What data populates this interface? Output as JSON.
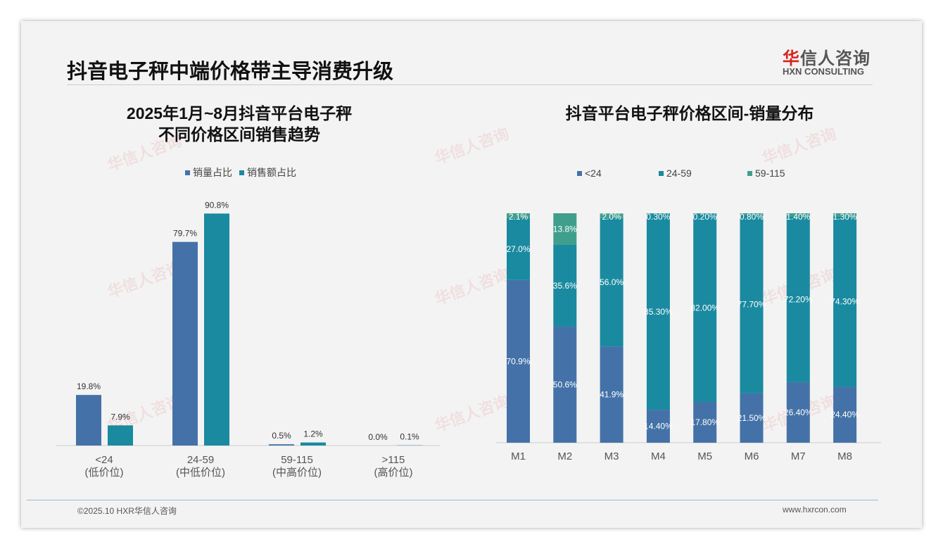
{
  "header": {
    "title": "抖音电子秤中端价格带主导消费升级",
    "logo_cn": "华信人咨询",
    "logo_cn_red": "华",
    "logo_en": "HXN CONSULTING"
  },
  "footer": {
    "copyright": "©2025.10 HXR华信人咨询",
    "website": "www.hxrcon.com"
  },
  "colors": {
    "blue": "#4472a8",
    "teal": "#1a8aa0",
    "green": "#3f9f8c"
  },
  "chart_data": [
    {
      "type": "bar",
      "title_line1": "2025年1月~8月抖音平台电子秤",
      "title_line2": "不同价格区间销售趋势",
      "categories": [
        "<24",
        "24-59",
        "59-115",
        ">115"
      ],
      "sublabels": [
        "(低价位)",
        "(中低价位)",
        "(中高价位)",
        "(高价位)"
      ],
      "series": [
        {
          "name": "销量占比",
          "values": [
            19.8,
            79.7,
            0.5,
            0.0
          ],
          "labels": [
            "19.8%",
            "79.7%",
            "0.5%",
            "0.0%"
          ]
        },
        {
          "name": "销售额占比",
          "values": [
            7.9,
            90.8,
            1.2,
            0.1
          ],
          "labels": [
            "7.9%",
            "90.8%",
            "1.2%",
            "0.1%"
          ]
        }
      ],
      "ylim": [
        0,
        100
      ],
      "legend": "top"
    },
    {
      "type": "bar",
      "stacked": true,
      "title": "抖音平台电子秤价格区间-销量分布",
      "categories": [
        "M1",
        "M2",
        "M3",
        "M4",
        "M5",
        "M6",
        "M7",
        "M8"
      ],
      "series": [
        {
          "name": "<24",
          "values": [
            70.9,
            50.6,
            41.9,
            14.4,
            17.8,
            21.5,
            26.4,
            24.4
          ],
          "labels": [
            "70.9%",
            "50.6%",
            "41.9%",
            "14.40%",
            "17.80%",
            "21.50%",
            "26.40%",
            "24.40%"
          ]
        },
        {
          "name": "24-59",
          "values": [
            27.0,
            35.6,
            56.0,
            85.3,
            82.0,
            77.7,
            72.2,
            74.3
          ],
          "labels": [
            "27.0%",
            "35.6%",
            "56.0%",
            "85.30%",
            "82.00%",
            "77.70%",
            "72.20%",
            "74.30%"
          ]
        },
        {
          "name": "59-115",
          "values": [
            2.1,
            13.8,
            2.0,
            0.3,
            0.2,
            0.8,
            1.4,
            1.3
          ],
          "labels": [
            "2.1%",
            "13.8%",
            "2.0%",
            "0.30%",
            "0.20%",
            "0.80%",
            "1.40%",
            "1.30%"
          ]
        }
      ],
      "ylim": [
        0,
        100
      ],
      "legend": "top"
    }
  ]
}
